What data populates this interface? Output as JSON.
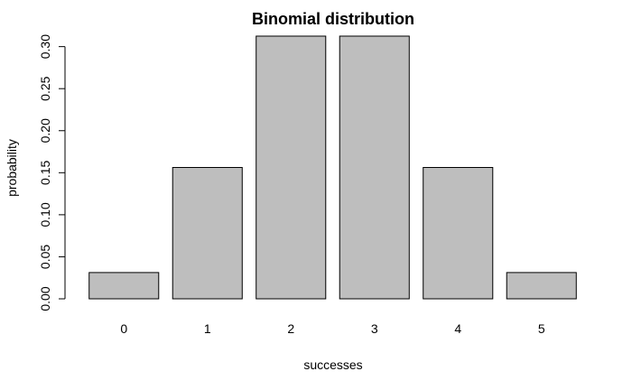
{
  "chart_data": {
    "type": "bar",
    "title": "Binomial distribution",
    "xlabel": "successes",
    "ylabel": "probability",
    "categories": [
      "0",
      "1",
      "2",
      "3",
      "4",
      "5"
    ],
    "values": [
      0.03125,
      0.15625,
      0.3125,
      0.3125,
      0.15625,
      0.03125
    ],
    "ylim": [
      0,
      0.3125
    ],
    "yticks": [
      0.0,
      0.05,
      0.1,
      0.15,
      0.2,
      0.25,
      0.3
    ],
    "ytick_labels": [
      "0.00",
      "0.05",
      "0.10",
      "0.15",
      "0.20",
      "0.25",
      "0.30"
    ],
    "bar_color": "#bebebe",
    "grid": false,
    "legend": false
  }
}
